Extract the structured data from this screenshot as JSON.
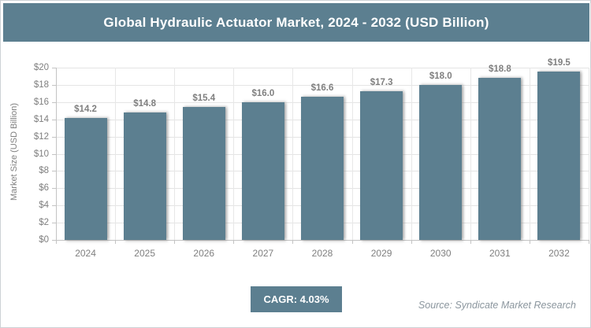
{
  "header": {
    "title": "Global Hydraulic Actuator Market, 2024 - 2032 (USD Billion)"
  },
  "chart_data": {
    "type": "bar",
    "title": "Global Hydraulic Actuator Market, 2024 - 2032 (USD Billion)",
    "categories": [
      "2024",
      "2025",
      "2026",
      "2027",
      "2028",
      "2029",
      "2030",
      "2031",
      "2032"
    ],
    "values": [
      14.2,
      14.8,
      15.4,
      16.0,
      16.6,
      17.3,
      18.0,
      18.8,
      19.5
    ],
    "value_labels": [
      "$14.2",
      "$14.8",
      "$15.4",
      "$16.0",
      "$16.6",
      "$17.3",
      "$18.0",
      "$18.8",
      "$19.5"
    ],
    "xlabel": "",
    "ylabel": "Market Size (USD Billion)",
    "ylim": [
      0,
      20
    ],
    "ytick_step": 2,
    "y_tick_labels": [
      "$20",
      "$18",
      "$16",
      "$14",
      "$12",
      "$10",
      "$8",
      "$6",
      "$4",
      "$2",
      "$0"
    ],
    "grid": true,
    "legend": false,
    "bar_color": "#5c7f90",
    "text_color": "#7f7f7f"
  },
  "footer": {
    "cagr_label": "CAGR: 4.03%",
    "source": "Source: Syndicate Market Research"
  },
  "colors": {
    "accent_teal": "#5c7f90",
    "grid_light": "#e4e4e4",
    "axis_gray": "#c3c3c3",
    "label_gray": "#7f7f7f",
    "source_gray": "#8b969e",
    "frame_border": "#cdd2d6"
  }
}
